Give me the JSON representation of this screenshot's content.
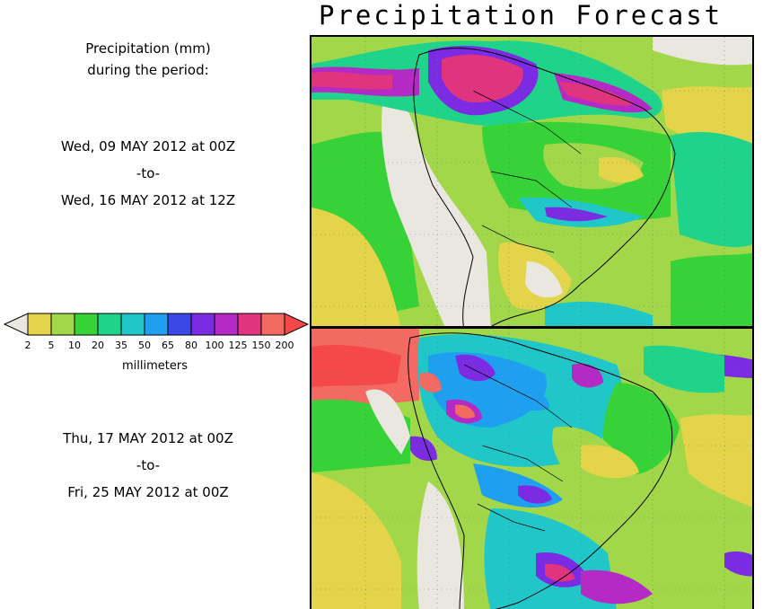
{
  "title": "Precipitation Forecast",
  "heading": {
    "line1": "Precipitation (mm)",
    "line2": "during the period:"
  },
  "period1": {
    "start": "Wed, 09 MAY 2012 at 00Z",
    "sep": "-to-",
    "end": "Wed, 16 MAY 2012 at 12Z"
  },
  "period2": {
    "start": "Thu, 17 MAY 2012 at 00Z",
    "sep": "-to-",
    "end": "Fri, 25 MAY 2012 at 00Z"
  },
  "legend": {
    "label": "millimeters",
    "ticks": [
      "2",
      "5",
      "10",
      "20",
      "35",
      "50",
      "65",
      "80",
      "100",
      "125",
      "150",
      "200"
    ],
    "colors": [
      "#e3d44a",
      "#a3d74a",
      "#37d238",
      "#1fd38a",
      "#20c6c8",
      "#1f9ff0",
      "#3a48e8",
      "#7b2be2",
      "#b52ac4",
      "#e0347e",
      "#f26a62"
    ],
    "under_color": "#eae6e0",
    "over_color": "#f54848"
  }
}
